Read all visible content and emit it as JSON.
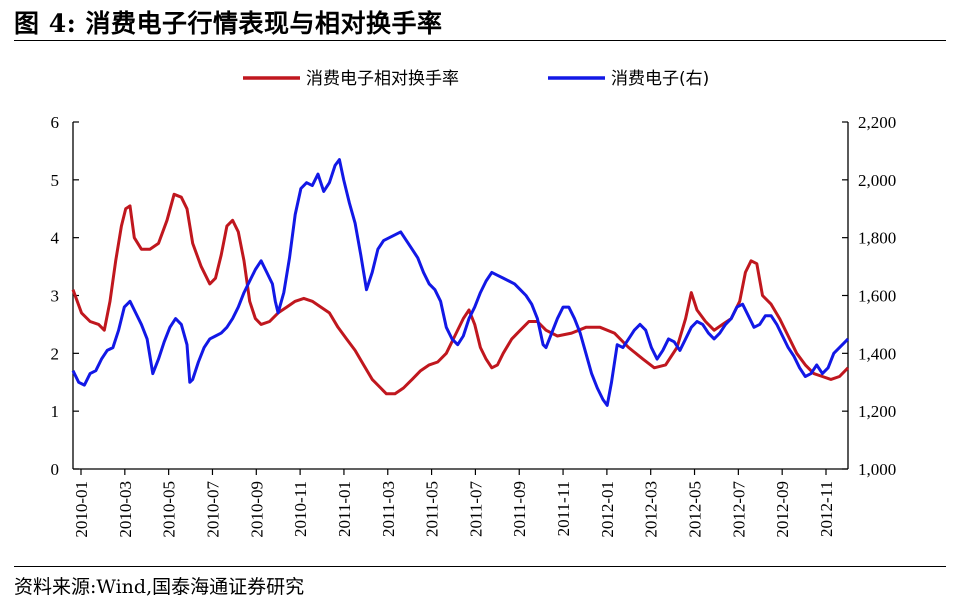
{
  "figure_title": "图 4:  消费电子行情表现与相对换手率",
  "source": "资料来源:Wind,国泰海通证券研究",
  "colors": {
    "turnover": "#C0171E",
    "index": "#1218E6"
  },
  "chart_data": {
    "type": "line",
    "title": "消费电子行情表现与相对换手率",
    "x_tick_labels": [
      "2010-01",
      "2010-03",
      "2010-05",
      "2010-07",
      "2010-09",
      "2010-11",
      "2011-01",
      "2011-03",
      "2011-05",
      "2011-07",
      "2011-09",
      "2011-11",
      "2012-01",
      "2012-03",
      "2012-05",
      "2012-07",
      "2012-09",
      "2012-11"
    ],
    "left_axis": {
      "ylim": [
        0,
        6
      ],
      "ticks": [
        "0",
        "1",
        "2",
        "3",
        "4",
        "5",
        "6"
      ]
    },
    "right_axis": {
      "ylim": [
        1000,
        2200
      ],
      "ticks": [
        "1,000",
        "1,200",
        "1,400",
        "1,600",
        "1,800",
        "2,000",
        "2,200"
      ]
    },
    "legend": {
      "position": "top-center"
    },
    "series": [
      {
        "name": "消费电子相对换手率",
        "axis": "left",
        "color": "#C0171E",
        "points": [
          [
            0.0,
            3.1
          ],
          [
            0.3,
            2.7
          ],
          [
            0.6,
            2.55
          ],
          [
            0.9,
            2.5
          ],
          [
            1.1,
            2.4
          ],
          [
            1.3,
            2.9
          ],
          [
            1.5,
            3.6
          ],
          [
            1.7,
            4.2
          ],
          [
            1.85,
            4.5
          ],
          [
            2.0,
            4.55
          ],
          [
            2.15,
            4.0
          ],
          [
            2.4,
            3.8
          ],
          [
            2.7,
            3.8
          ],
          [
            3.0,
            3.9
          ],
          [
            3.3,
            4.3
          ],
          [
            3.55,
            4.75
          ],
          [
            3.8,
            4.7
          ],
          [
            4.0,
            4.5
          ],
          [
            4.2,
            3.9
          ],
          [
            4.5,
            3.5
          ],
          [
            4.8,
            3.2
          ],
          [
            5.0,
            3.3
          ],
          [
            5.2,
            3.7
          ],
          [
            5.4,
            4.2
          ],
          [
            5.6,
            4.3
          ],
          [
            5.8,
            4.1
          ],
          [
            6.0,
            3.6
          ],
          [
            6.2,
            2.9
          ],
          [
            6.4,
            2.6
          ],
          [
            6.6,
            2.5
          ],
          [
            6.9,
            2.55
          ],
          [
            7.2,
            2.7
          ],
          [
            7.5,
            2.8
          ],
          [
            7.8,
            2.9
          ],
          [
            8.1,
            2.95
          ],
          [
            8.4,
            2.9
          ],
          [
            8.7,
            2.8
          ],
          [
            9.0,
            2.7
          ],
          [
            9.3,
            2.45
          ],
          [
            9.6,
            2.25
          ],
          [
            9.9,
            2.05
          ],
          [
            10.2,
            1.8
          ],
          [
            10.5,
            1.55
          ],
          [
            10.8,
            1.4
          ],
          [
            11.0,
            1.3
          ],
          [
            11.3,
            1.3
          ],
          [
            11.6,
            1.4
          ],
          [
            11.9,
            1.55
          ],
          [
            12.2,
            1.7
          ],
          [
            12.5,
            1.8
          ],
          [
            12.8,
            1.85
          ],
          [
            13.1,
            2.0
          ],
          [
            13.4,
            2.3
          ],
          [
            13.7,
            2.6
          ],
          [
            13.9,
            2.75
          ],
          [
            14.1,
            2.5
          ],
          [
            14.3,
            2.1
          ],
          [
            14.5,
            1.9
          ],
          [
            14.7,
            1.75
          ],
          [
            14.9,
            1.8
          ],
          [
            15.1,
            2.0
          ],
          [
            15.4,
            2.25
          ],
          [
            15.7,
            2.4
          ],
          [
            16.0,
            2.55
          ],
          [
            16.3,
            2.55
          ],
          [
            16.6,
            2.4
          ],
          [
            17.0,
            2.3
          ],
          [
            17.5,
            2.35
          ],
          [
            18.0,
            2.45
          ],
          [
            18.5,
            2.45
          ],
          [
            19.0,
            2.35
          ],
          [
            19.5,
            2.1
          ],
          [
            20.0,
            1.9
          ],
          [
            20.4,
            1.75
          ],
          [
            20.8,
            1.8
          ],
          [
            21.2,
            2.1
          ],
          [
            21.5,
            2.6
          ],
          [
            21.7,
            3.05
          ],
          [
            21.9,
            2.75
          ],
          [
            22.2,
            2.55
          ],
          [
            22.5,
            2.4
          ],
          [
            22.8,
            2.5
          ],
          [
            23.1,
            2.6
          ],
          [
            23.4,
            2.9
          ],
          [
            23.6,
            3.4
          ],
          [
            23.8,
            3.6
          ],
          [
            24.0,
            3.55
          ],
          [
            24.2,
            3.0
          ],
          [
            24.5,
            2.85
          ],
          [
            24.8,
            2.6
          ],
          [
            25.1,
            2.3
          ],
          [
            25.4,
            2.0
          ],
          [
            25.7,
            1.8
          ],
          [
            26.0,
            1.65
          ],
          [
            26.3,
            1.6
          ],
          [
            26.6,
            1.55
          ],
          [
            26.9,
            1.6
          ],
          [
            27.2,
            1.75
          ]
        ]
      },
      {
        "name": "消费电子(右)",
        "axis": "right",
        "color": "#1218E6",
        "points": [
          [
            0.0,
            1340
          ],
          [
            0.2,
            1300
          ],
          [
            0.4,
            1290
          ],
          [
            0.6,
            1330
          ],
          [
            0.8,
            1340
          ],
          [
            1.0,
            1380
          ],
          [
            1.2,
            1410
          ],
          [
            1.4,
            1420
          ],
          [
            1.6,
            1480
          ],
          [
            1.8,
            1560
          ],
          [
            2.0,
            1580
          ],
          [
            2.2,
            1540
          ],
          [
            2.4,
            1500
          ],
          [
            2.6,
            1450
          ],
          [
            2.8,
            1330
          ],
          [
            3.0,
            1380
          ],
          [
            3.2,
            1440
          ],
          [
            3.4,
            1490
          ],
          [
            3.6,
            1520
          ],
          [
            3.8,
            1500
          ],
          [
            4.0,
            1430
          ],
          [
            4.1,
            1300
          ],
          [
            4.2,
            1310
          ],
          [
            4.4,
            1370
          ],
          [
            4.6,
            1420
          ],
          [
            4.8,
            1450
          ],
          [
            5.0,
            1460
          ],
          [
            5.2,
            1470
          ],
          [
            5.4,
            1490
          ],
          [
            5.6,
            1520
          ],
          [
            5.8,
            1560
          ],
          [
            6.0,
            1610
          ],
          [
            6.2,
            1650
          ],
          [
            6.4,
            1690
          ],
          [
            6.6,
            1720
          ],
          [
            6.8,
            1680
          ],
          [
            7.0,
            1640
          ],
          [
            7.1,
            1580
          ],
          [
            7.2,
            1540
          ],
          [
            7.4,
            1610
          ],
          [
            7.6,
            1730
          ],
          [
            7.8,
            1880
          ],
          [
            8.0,
            1970
          ],
          [
            8.2,
            1990
          ],
          [
            8.4,
            1980
          ],
          [
            8.6,
            2020
          ],
          [
            8.8,
            1960
          ],
          [
            9.0,
            1990
          ],
          [
            9.2,
            2050
          ],
          [
            9.35,
            2070
          ],
          [
            9.5,
            2000
          ],
          [
            9.7,
            1920
          ],
          [
            9.9,
            1850
          ],
          [
            10.1,
            1740
          ],
          [
            10.3,
            1620
          ],
          [
            10.5,
            1680
          ],
          [
            10.7,
            1760
          ],
          [
            10.9,
            1790
          ],
          [
            11.1,
            1800
          ],
          [
            11.3,
            1810
          ],
          [
            11.5,
            1820
          ],
          [
            11.7,
            1790
          ],
          [
            11.9,
            1760
          ],
          [
            12.1,
            1730
          ],
          [
            12.3,
            1680
          ],
          [
            12.5,
            1640
          ],
          [
            12.7,
            1620
          ],
          [
            12.9,
            1580
          ],
          [
            13.1,
            1490
          ],
          [
            13.3,
            1450
          ],
          [
            13.5,
            1430
          ],
          [
            13.7,
            1460
          ],
          [
            13.9,
            1520
          ],
          [
            14.1,
            1560
          ],
          [
            14.3,
            1610
          ],
          [
            14.5,
            1650
          ],
          [
            14.7,
            1680
          ],
          [
            14.9,
            1670
          ],
          [
            15.1,
            1660
          ],
          [
            15.3,
            1650
          ],
          [
            15.5,
            1640
          ],
          [
            15.7,
            1620
          ],
          [
            15.9,
            1600
          ],
          [
            16.1,
            1570
          ],
          [
            16.3,
            1520
          ],
          [
            16.5,
            1430
          ],
          [
            16.6,
            1420
          ],
          [
            16.8,
            1470
          ],
          [
            17.0,
            1520
          ],
          [
            17.2,
            1560
          ],
          [
            17.4,
            1560
          ],
          [
            17.6,
            1520
          ],
          [
            17.8,
            1470
          ],
          [
            18.0,
            1400
          ],
          [
            18.2,
            1330
          ],
          [
            18.4,
            1280
          ],
          [
            18.6,
            1240
          ],
          [
            18.75,
            1220
          ],
          [
            18.9,
            1300
          ],
          [
            19.1,
            1430
          ],
          [
            19.3,
            1420
          ],
          [
            19.5,
            1450
          ],
          [
            19.7,
            1480
          ],
          [
            19.9,
            1500
          ],
          [
            20.1,
            1480
          ],
          [
            20.3,
            1420
          ],
          [
            20.5,
            1380
          ],
          [
            20.7,
            1410
          ],
          [
            20.9,
            1450
          ],
          [
            21.1,
            1440
          ],
          [
            21.3,
            1410
          ],
          [
            21.5,
            1450
          ],
          [
            21.7,
            1490
          ],
          [
            21.9,
            1510
          ],
          [
            22.1,
            1500
          ],
          [
            22.3,
            1470
          ],
          [
            22.5,
            1450
          ],
          [
            22.7,
            1470
          ],
          [
            22.9,
            1500
          ],
          [
            23.1,
            1520
          ],
          [
            23.3,
            1560
          ],
          [
            23.5,
            1570
          ],
          [
            23.7,
            1530
          ],
          [
            23.9,
            1490
          ],
          [
            24.1,
            1500
          ],
          [
            24.3,
            1530
          ],
          [
            24.5,
            1530
          ],
          [
            24.7,
            1500
          ],
          [
            24.9,
            1460
          ],
          [
            25.1,
            1420
          ],
          [
            25.3,
            1390
          ],
          [
            25.5,
            1350
          ],
          [
            25.7,
            1320
          ],
          [
            25.9,
            1330
          ],
          [
            26.1,
            1360
          ],
          [
            26.3,
            1330
          ],
          [
            26.5,
            1350
          ],
          [
            26.7,
            1400
          ],
          [
            26.9,
            1420
          ],
          [
            27.1,
            1440
          ],
          [
            27.2,
            1450
          ]
        ]
      }
    ]
  }
}
